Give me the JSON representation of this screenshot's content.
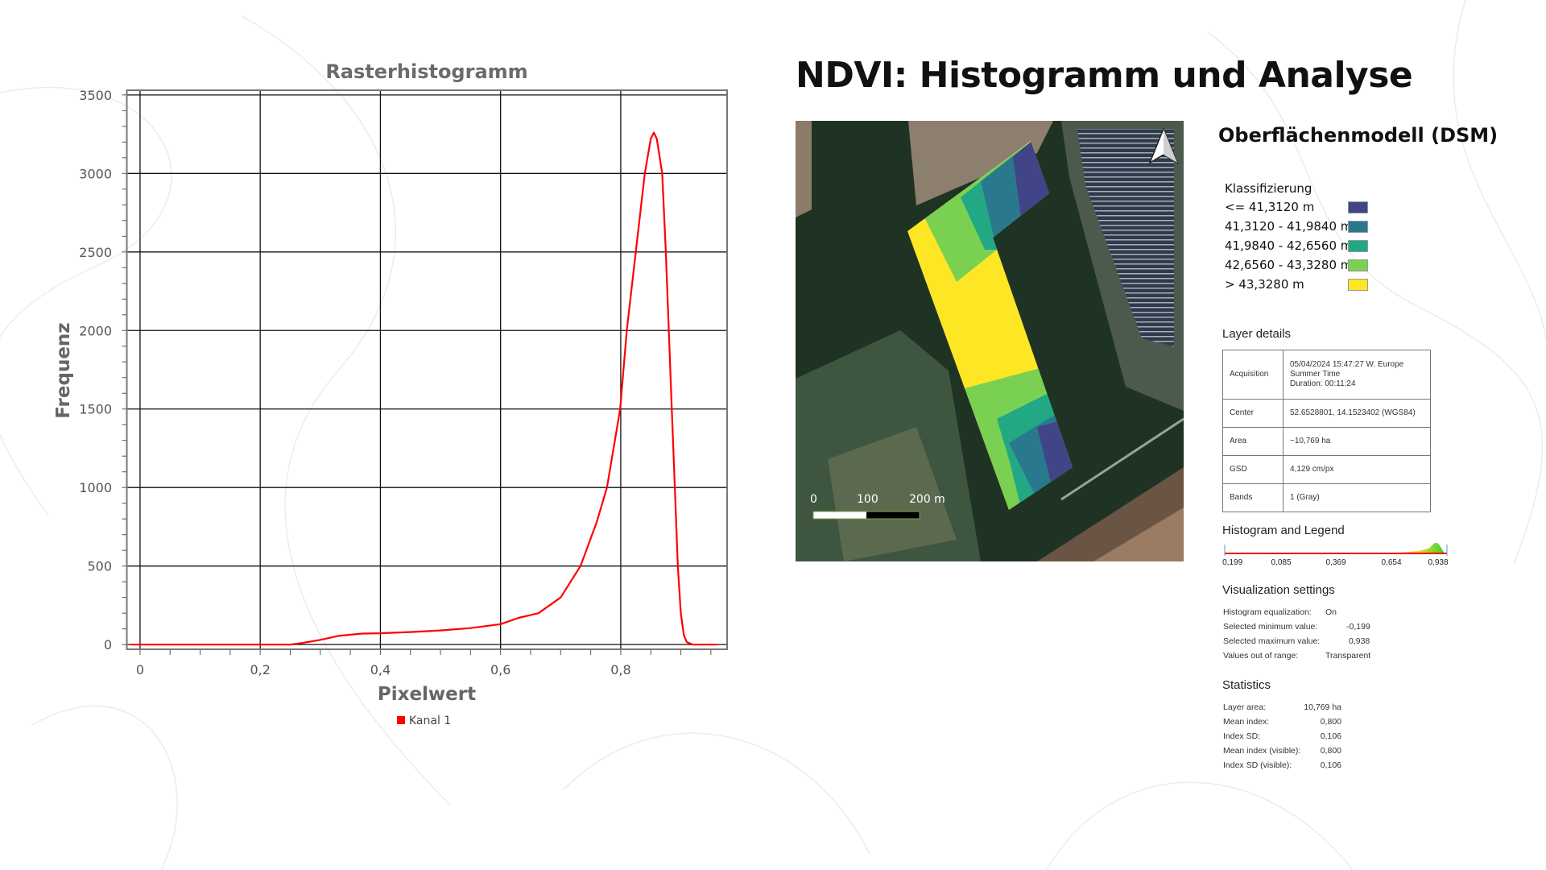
{
  "page_title": "NDVI: Histogramm und Analyse",
  "chart_data": {
    "type": "line",
    "title": "Rasterhistogramm",
    "xlabel": "Pixelwert",
    "ylabel": "Frequenz",
    "xlim": [
      -0.022,
      0.977
    ],
    "ylim": [
      -30,
      3530
    ],
    "xticks": [
      0,
      0.2,
      0.4,
      0.6,
      0.8
    ],
    "xtick_labels": [
      "0",
      "0,2",
      "0,4",
      "0,6",
      "0,8"
    ],
    "yticks": [
      0,
      500,
      1000,
      1500,
      2000,
      2500,
      3000,
      3500
    ],
    "ytick_labels": [
      "0",
      "500",
      "1000",
      "1500",
      "2000",
      "2500",
      "3000",
      "3500"
    ],
    "grid": true,
    "legend_position": "bottom",
    "series": [
      {
        "name": "Kanal 1",
        "color": "#ff0000",
        "x": [
          -0.015,
          0.1,
          0.25,
          0.27,
          0.3,
          0.33,
          0.37,
          0.4,
          0.45,
          0.5,
          0.55,
          0.6,
          0.63,
          0.663,
          0.7,
          0.733,
          0.76,
          0.777,
          0.799,
          0.81,
          0.825,
          0.84,
          0.85,
          0.855,
          0.86,
          0.865,
          0.869,
          0.875,
          0.88,
          0.885,
          0.89,
          0.895,
          0.9,
          0.905,
          0.91,
          0.92,
          0.96
        ],
        "y": [
          0,
          0,
          0,
          10,
          30,
          55,
          70,
          72,
          80,
          90,
          105,
          130,
          170,
          200,
          300,
          500,
          780,
          1000,
          1500,
          2000,
          2500,
          3000,
          3220,
          3260,
          3220,
          3100,
          3000,
          2500,
          2000,
          1500,
          1000,
          500,
          200,
          60,
          15,
          0,
          0
        ]
      }
    ]
  },
  "map": {
    "scale_labels": [
      "0",
      "100",
      "200 m"
    ],
    "north_arrow_icon": "north-arrow-icon"
  },
  "dsm": {
    "title": "Oberflächenmodell (DSM)",
    "legend_title": "Klassifizierung",
    "classes": [
      {
        "label": "<= 41,3120 m",
        "color": "#414487"
      },
      {
        "label": "41,3120 - 41,9840 m",
        "color": "#2a788e"
      },
      {
        "label": "41,9840 - 42,6560 m",
        "color": "#22a884"
      },
      {
        "label": "42,6560 - 43,3280 m",
        "color": "#7ad151"
      },
      {
        "label": "> 43,3280 m",
        "color": "#fde725"
      }
    ]
  },
  "layer_details": {
    "title": "Layer details",
    "rows": [
      {
        "key": "Acquisition",
        "value_lines": [
          "05/04/2024 15:47:27 W. Europe",
          "Summer Time",
          "Duration: 00:11:24"
        ]
      },
      {
        "key": "Center",
        "value_lines": [
          "52.6528801, 14.1523402 (WGS84)"
        ]
      },
      {
        "key": "Area",
        "value_lines": [
          "~10,769 ha"
        ]
      },
      {
        "key": "GSD",
        "value_lines": [
          "4,129 cm/px"
        ]
      },
      {
        "key": "Bands",
        "value_lines": [
          "1 (Gray)"
        ]
      }
    ]
  },
  "histogram_legend": {
    "title": "Histogram and Legend",
    "tick_labels": [
      "-0,199",
      "0,085",
      "0,369",
      "0,654",
      "0,938"
    ]
  },
  "visualization": {
    "title": "Visualization settings",
    "rows": [
      {
        "key": "Histogram equalization:",
        "value": "On"
      },
      {
        "key": "Selected minimum value:",
        "value": "-0,199"
      },
      {
        "key": "Selected maximum value:",
        "value": "0,938"
      },
      {
        "key": "Values out of range:",
        "value": "Transparent"
      }
    ]
  },
  "statistics": {
    "title": "Statistics",
    "rows": [
      {
        "key": "Layer area:",
        "value": "10,769 ha"
      },
      {
        "key": "Mean index:",
        "value": "0,800"
      },
      {
        "key": "Index SD:",
        "value": "0,106"
      },
      {
        "key": "Mean index (visible):",
        "value": "0,800"
      },
      {
        "key": "Index SD (visible):",
        "value": "0,106"
      }
    ]
  }
}
